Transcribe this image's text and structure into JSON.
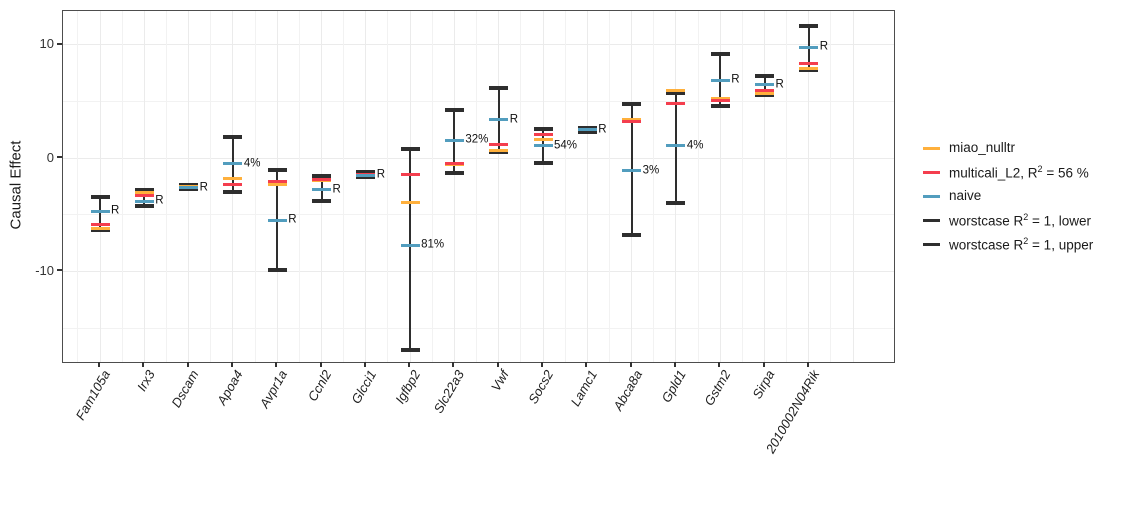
{
  "chart_data": {
    "type": "scatter",
    "subtype": "errorbar-with-method-ticks",
    "title": "",
    "xlabel": "",
    "ylabel": "Causal Effect",
    "ylim": [
      -18,
      13
    ],
    "yticks": [
      10,
      0,
      -10
    ],
    "yticks_minor": [
      5,
      -5,
      -15
    ],
    "grid": true,
    "legend_position": "right",
    "categories": [
      "Fam105a",
      "Irx3",
      "Dscam",
      "Apoa4",
      "Avpr1a",
      "Ccnl2",
      "Glcci1",
      "Igfbp2",
      "Slc22a3",
      "Vwf",
      "Socs2",
      "Lamc1",
      "Abca8a",
      "Gpld1",
      "Gstm2",
      "Sirpa",
      "2010002N04Rik"
    ],
    "series": [
      {
        "name": "miao_nulltr",
        "color": "#ffb03c",
        "values": [
          -6.2,
          -3.0,
          -2.5,
          -1.8,
          -2.3,
          -2.0,
          -1.45,
          -3.9,
          -0.6,
          0.7,
          1.65,
          2.5,
          3.4,
          6.0,
          5.3,
          5.7,
          7.95
        ]
      },
      {
        "name": "multicali_L2, R² = 56 %",
        "color": "#f43e4e",
        "values": [
          -5.9,
          -3.3,
          -2.55,
          -2.3,
          -2.1,
          -1.9,
          -1.4,
          -1.4,
          -0.5,
          1.2,
          2.05,
          2.5,
          3.2,
          4.8,
          5.1,
          5.95,
          8.4
        ]
      },
      {
        "name": "naive",
        "color": "#529dbe",
        "values": [
          -4.7,
          -3.8,
          -2.6,
          -0.5,
          -5.5,
          -2.8,
          -1.5,
          -7.7,
          1.6,
          3.4,
          1.1,
          2.5,
          -1.1,
          1.1,
          6.9,
          6.5,
          9.8
        ]
      },
      {
        "name": "worstcase R² = 1, lower",
        "color": "#2e2e2e",
        "values": [
          -6.3,
          -4.2,
          -2.7,
          -3.0,
          -9.9,
          -3.8,
          -1.7,
          -16.9,
          -1.3,
          0.55,
          -0.45,
          2.35,
          -6.8,
          -4.0,
          4.6,
          5.6,
          7.8
        ]
      },
      {
        "name": "worstcase R² = 1, upper",
        "color": "#2e2e2e",
        "values": [
          -3.4,
          -2.8,
          -2.4,
          1.9,
          -1.0,
          -1.6,
          -1.2,
          0.8,
          4.3,
          6.2,
          2.55,
          2.7,
          4.8,
          5.8,
          9.2,
          7.3,
          11.7
        ]
      }
    ],
    "point_labels": [
      "R",
      "R",
      "R",
      "4%",
      "R",
      "R",
      "R",
      "81%",
      "32%",
      "R",
      "54%",
      "R",
      "3%",
      "4%",
      "R",
      "R",
      "R"
    ],
    "point_labels_attached_to": "naive"
  }
}
